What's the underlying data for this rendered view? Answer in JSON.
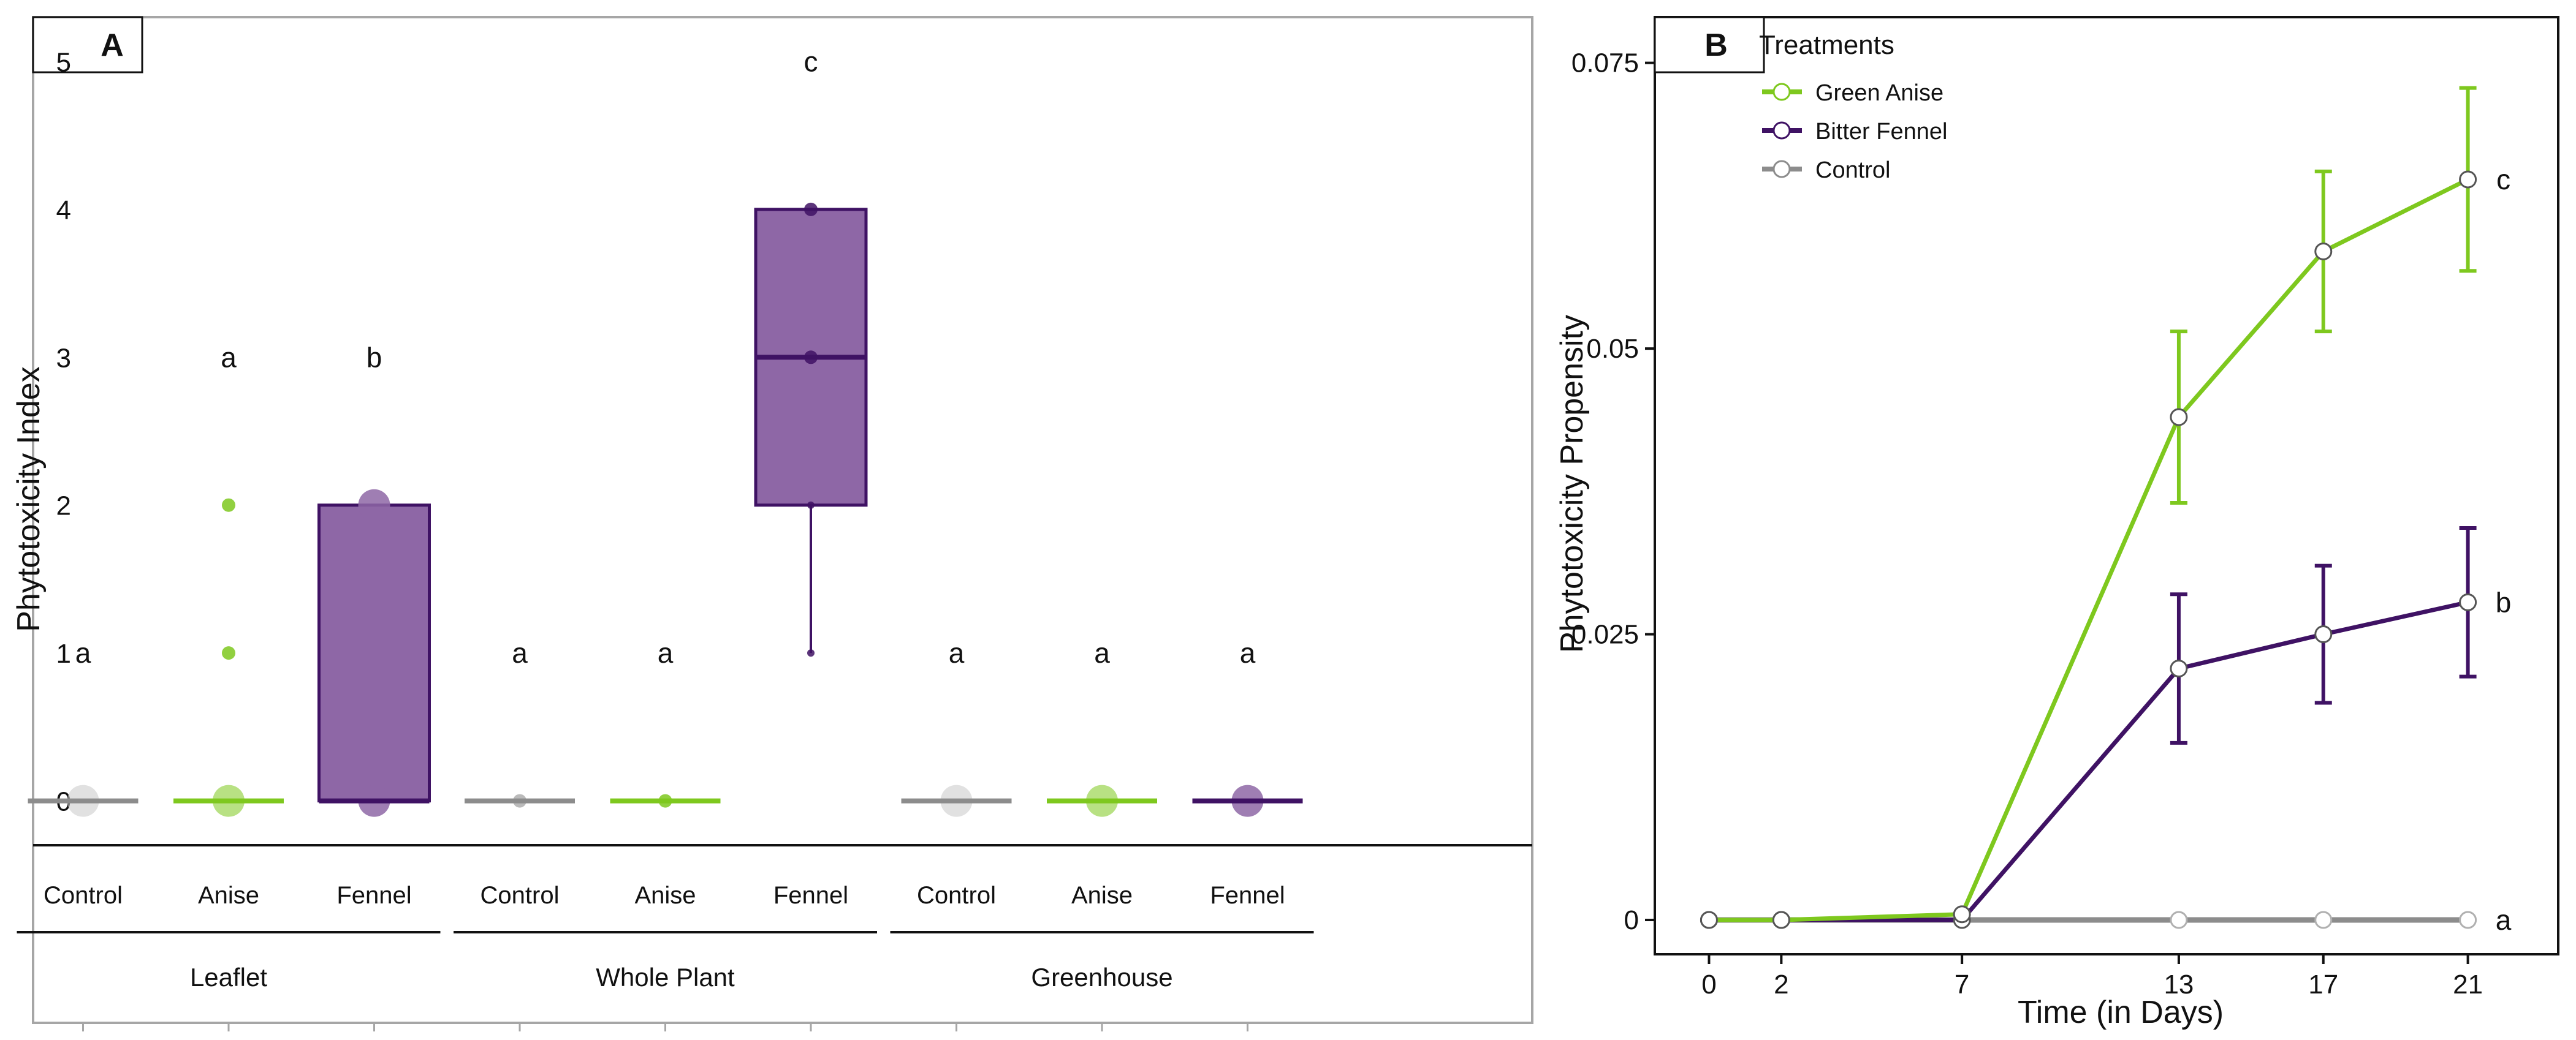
{
  "colors": {
    "anise": "#7ec81e",
    "fennel": "#3f1264",
    "fennel_box": "#8e67a6",
    "control": "#8c8c8c",
    "control_light": "#c8c8c8",
    "frame": "#a6a6a6",
    "axis": "#111111"
  },
  "chart_data": [
    {
      "type": "box",
      "panel_label": "A",
      "ylabel": "Phytotoxicity Index",
      "ylim": [
        -0.3,
        5.3
      ],
      "y_ticks": [
        "0",
        "1",
        "2",
        "3",
        "4",
        "5"
      ],
      "y_tick_values": [
        0,
        1,
        2,
        3,
        4,
        5
      ],
      "groups": [
        {
          "label": "Leaflet",
          "boxes": [
            {
              "label": "Control",
              "series": "control",
              "q1": 0,
              "median": 0,
              "q3": 0,
              "whisker_low": 0,
              "whisker_high": 0,
              "letter": "a",
              "letter_y": 1,
              "points": [
                {
                  "y": 0,
                  "size": "large"
                }
              ]
            },
            {
              "label": "Anise",
              "series": "anise",
              "q1": 0,
              "median": 0,
              "q3": 0,
              "whisker_low": 0,
              "whisker_high": 0,
              "letter": "a",
              "letter_y": 3,
              "points": [
                {
                  "y": 0,
                  "size": "large"
                },
                {
                  "y": 1,
                  "size": "small"
                },
                {
                  "y": 2,
                  "size": "small"
                }
              ]
            },
            {
              "label": "Fennel",
              "series": "fennel",
              "q1": 0,
              "median": 0,
              "q3": 2,
              "whisker_low": 0,
              "whisker_high": 2,
              "letter": "b",
              "letter_y": 3,
              "points": [
                {
                  "y": 0,
                  "size": "large"
                },
                {
                  "y": 2,
                  "size": "large"
                }
              ]
            }
          ]
        },
        {
          "label": "Whole Plant",
          "boxes": [
            {
              "label": "Control",
              "series": "control",
              "q1": 0,
              "median": 0,
              "q3": 0,
              "whisker_low": 0,
              "whisker_high": 0,
              "letter": "a",
              "letter_y": 1,
              "points": [
                {
                  "y": 0,
                  "size": "small"
                }
              ]
            },
            {
              "label": "Anise",
              "series": "anise",
              "q1": 0,
              "median": 0,
              "q3": 0,
              "whisker_low": 0,
              "whisker_high": 0,
              "letter": "a",
              "letter_y": 1,
              "points": [
                {
                  "y": 0,
                  "size": "small"
                }
              ]
            },
            {
              "label": "Fennel",
              "series": "fennel",
              "q1": 2,
              "median": 3,
              "q3": 4,
              "whisker_low": 1,
              "whisker_high": 4,
              "letter": "c",
              "letter_y": 5,
              "points": [
                {
                  "y": 1,
                  "size": "tiny"
                },
                {
                  "y": 2,
                  "size": "tiny"
                },
                {
                  "y": 3,
                  "size": "small"
                },
                {
                  "y": 4,
                  "size": "small"
                }
              ]
            }
          ]
        },
        {
          "label": "Greenhouse",
          "boxes": [
            {
              "label": "Control",
              "series": "control",
              "q1": 0,
              "median": 0,
              "q3": 0,
              "whisker_low": 0,
              "whisker_high": 0,
              "letter": "a",
              "letter_y": 1,
              "points": [
                {
                  "y": 0,
                  "size": "large"
                }
              ]
            },
            {
              "label": "Anise",
              "series": "anise",
              "q1": 0,
              "median": 0,
              "q3": 0,
              "whisker_low": 0,
              "whisker_high": 0,
              "letter": "a",
              "letter_y": 1,
              "points": [
                {
                  "y": 0,
                  "size": "large"
                }
              ]
            },
            {
              "label": "Fennel",
              "series": "fennel",
              "q1": 0,
              "median": 0,
              "q3": 0,
              "whisker_low": 0,
              "whisker_high": 0,
              "letter": "a",
              "letter_y": 1,
              "points": [
                {
                  "y": 0,
                  "size": "large"
                }
              ]
            }
          ]
        }
      ]
    },
    {
      "type": "line",
      "panel_label": "B",
      "ylabel": "Phytotoxicity Propensity",
      "xlabel": "Time (in Days)",
      "xlim": [
        -1.5,
        23.5
      ],
      "ylim": [
        -0.003,
        0.079
      ],
      "x": [
        0,
        2,
        7,
        13,
        17,
        21
      ],
      "x_ticks": [
        "0",
        "2",
        "7",
        "13",
        "17",
        "21"
      ],
      "y_ticks": [
        "0",
        "0.025",
        "0.05",
        "0.075"
      ],
      "y_tick_values": [
        0,
        0.025,
        0.05,
        0.075
      ],
      "legend": {
        "title": "Treatments",
        "position": "top-left"
      },
      "series": [
        {
          "key": "anise",
          "name": "Green Anise",
          "values": [
            0,
            0,
            0.0005,
            0.044,
            0.0585,
            0.0648
          ],
          "errors": [
            0,
            0,
            0,
            0.0075,
            0.007,
            0.008
          ],
          "letter": "c"
        },
        {
          "key": "fennel",
          "name": "Bitter Fennel",
          "values": [
            0,
            0,
            0,
            0.022,
            0.025,
            0.0278
          ],
          "errors": [
            0,
            0,
            0,
            0.0065,
            0.006,
            0.0065
          ],
          "letter": "b"
        },
        {
          "key": "control",
          "name": "Control",
          "values": [
            0,
            0,
            0,
            0,
            0,
            0
          ],
          "errors": [
            0,
            0,
            0,
            0,
            0,
            0
          ],
          "letter": "a"
        }
      ]
    }
  ]
}
